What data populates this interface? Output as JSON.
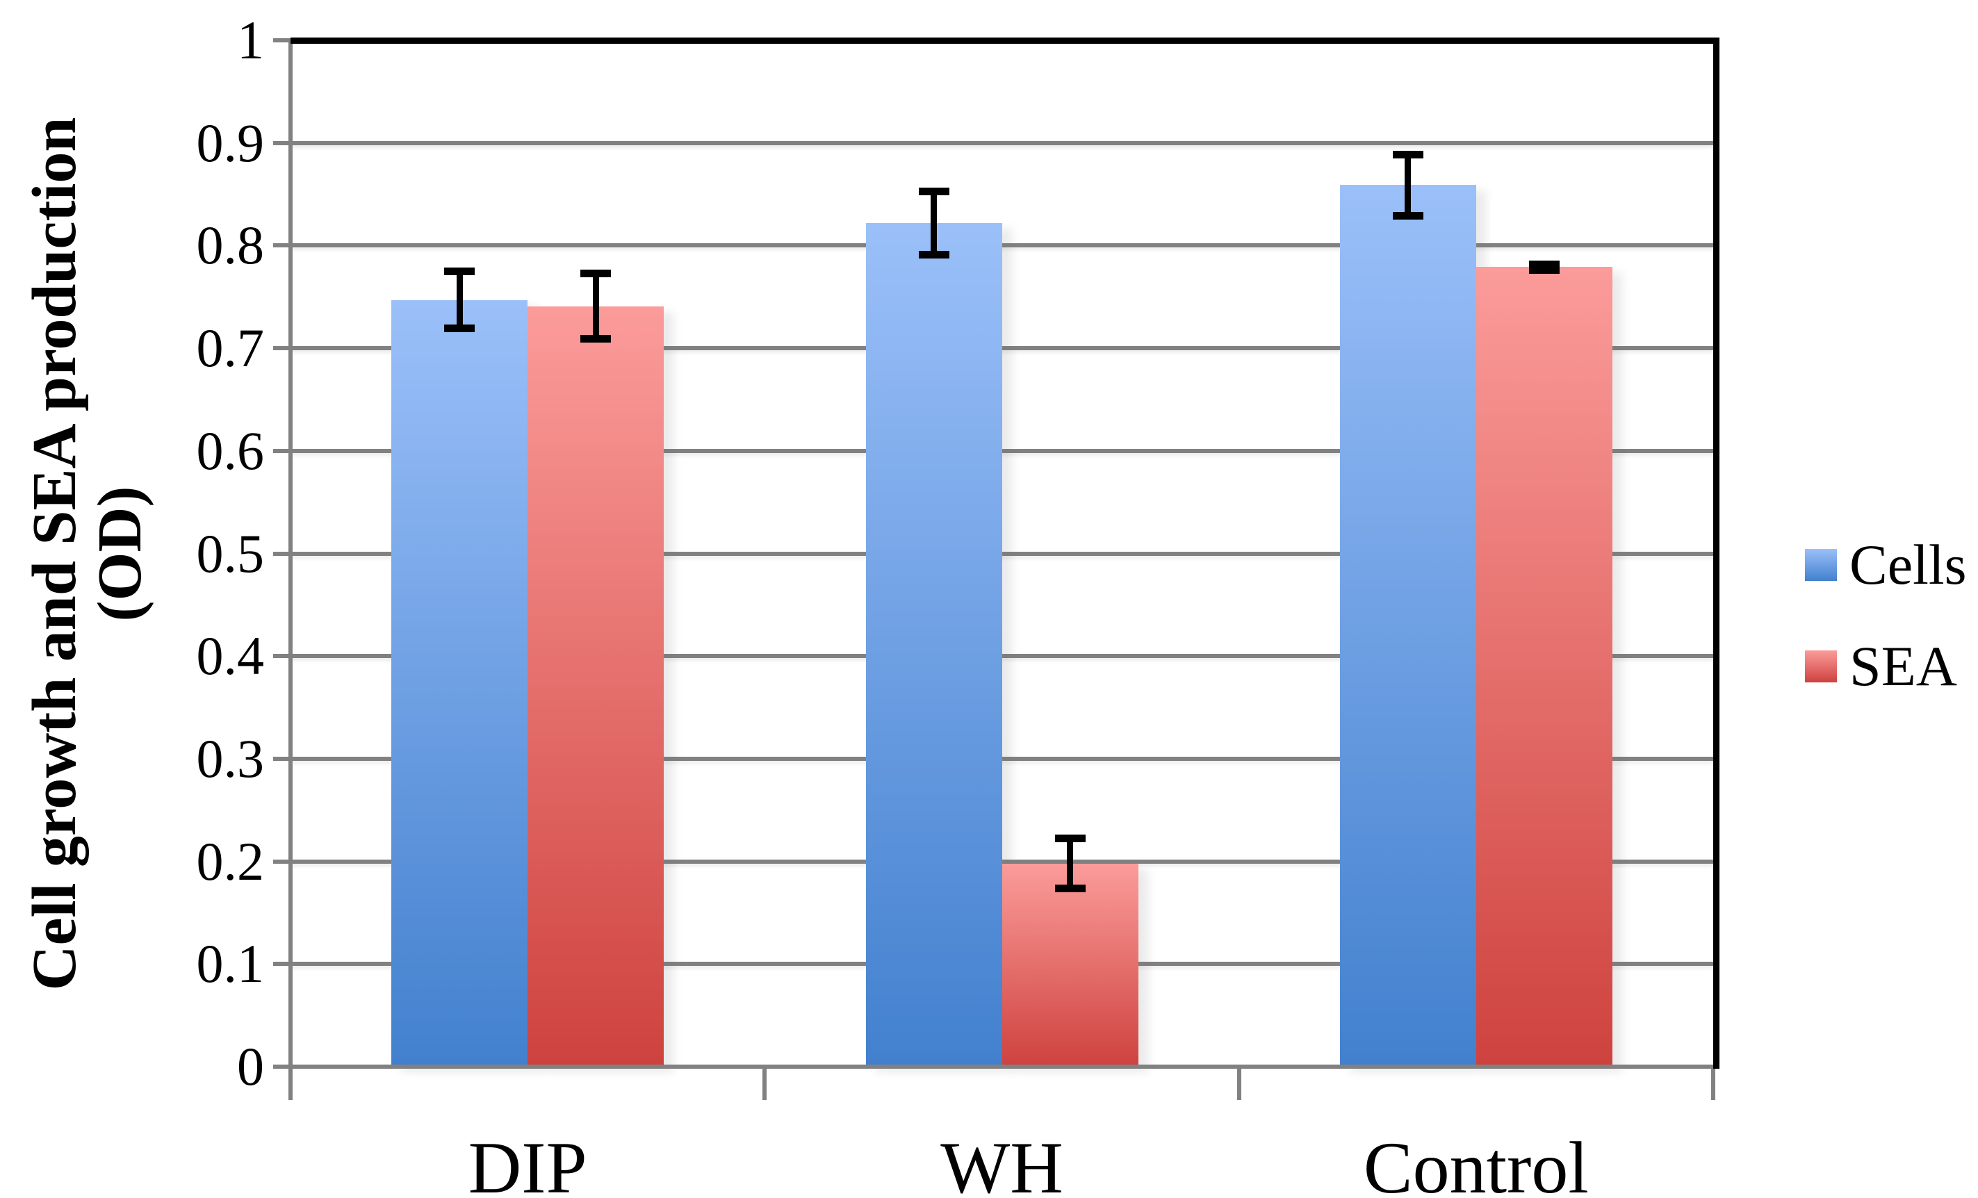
{
  "chart_data": {
    "type": "bar",
    "title": "",
    "categories": [
      "DIP",
      "WH",
      "Control"
    ],
    "series": [
      {
        "name": "Cells",
        "values": [
          0.747,
          0.822,
          0.859
        ],
        "errors": [
          0.028,
          0.031,
          0.03
        ],
        "color_top": "#9BC0F9",
        "color_bottom": "#4280CE"
      },
      {
        "name": "SEA",
        "values": [
          0.741,
          0.198,
          0.779
        ],
        "errors": [
          0.032,
          0.025,
          0.003
        ],
        "color_top": "#FB9C9A",
        "color_bottom": "#CE423E"
      }
    ],
    "ylabel_line1": "Cell growth and SEA production",
    "ylabel_line2": "(OD)",
    "xlabel": "",
    "ylim": [
      0,
      1
    ],
    "ytick_step": 0.1,
    "ytick_labels": [
      "0",
      "0.1",
      "0.2",
      "0.3",
      "0.4",
      "0.5",
      "0.6",
      "0.7",
      "0.8",
      "0.9",
      "1"
    ],
    "grid": true,
    "error_bars": true,
    "legend_position": "right"
  },
  "legend": {
    "items": [
      {
        "label": "Cells"
      },
      {
        "label": "SEA"
      }
    ]
  },
  "colors": {
    "background": "#FFFFFF",
    "gridline": "#818181",
    "axis": "#818181",
    "plot_border": "#000000",
    "error_bar": "#000000",
    "text": "#000000"
  }
}
